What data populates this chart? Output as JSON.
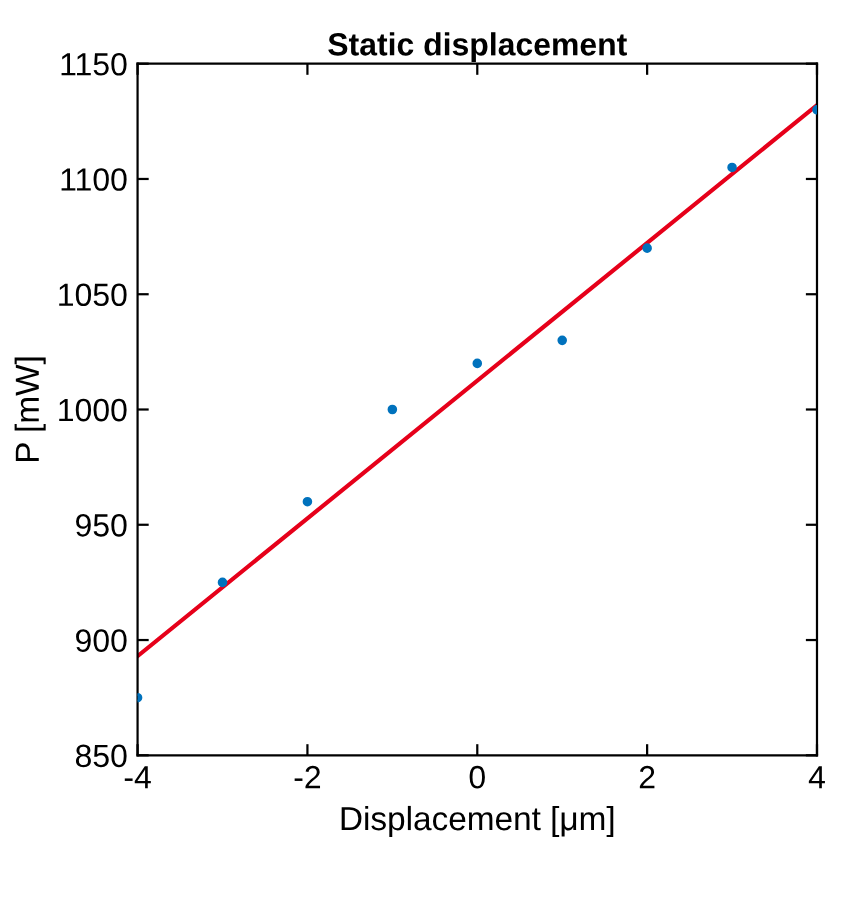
{
  "chart_data": {
    "type": "scatter",
    "title": "Static displacement",
    "xlabel": "Displacement [μm]",
    "ylabel": "P [mW]",
    "xlim": [
      -4,
      4
    ],
    "xticks": [
      -4,
      -2,
      0,
      2,
      4
    ],
    "ylim": [
      850,
      1150
    ],
    "yticks": [
      850,
      900,
      950,
      1000,
      1050,
      1100,
      1150
    ],
    "grid": false,
    "legend": false,
    "series": [
      {
        "color": "#0072bd",
        "marker": "circle",
        "x": [
          -4,
          -3,
          -2,
          -1,
          0,
          1,
          2,
          3,
          4
        ],
        "values": [
          875,
          925,
          960,
          1000,
          1020,
          1030,
          1070,
          1105,
          1130
        ]
      },
      {
        "type": "line",
        "color": "#e6001a",
        "marker": "none",
        "line_style": "solid",
        "x": [
          -4,
          4
        ],
        "values": [
          893,
          1132
        ]
      }
    ]
  }
}
